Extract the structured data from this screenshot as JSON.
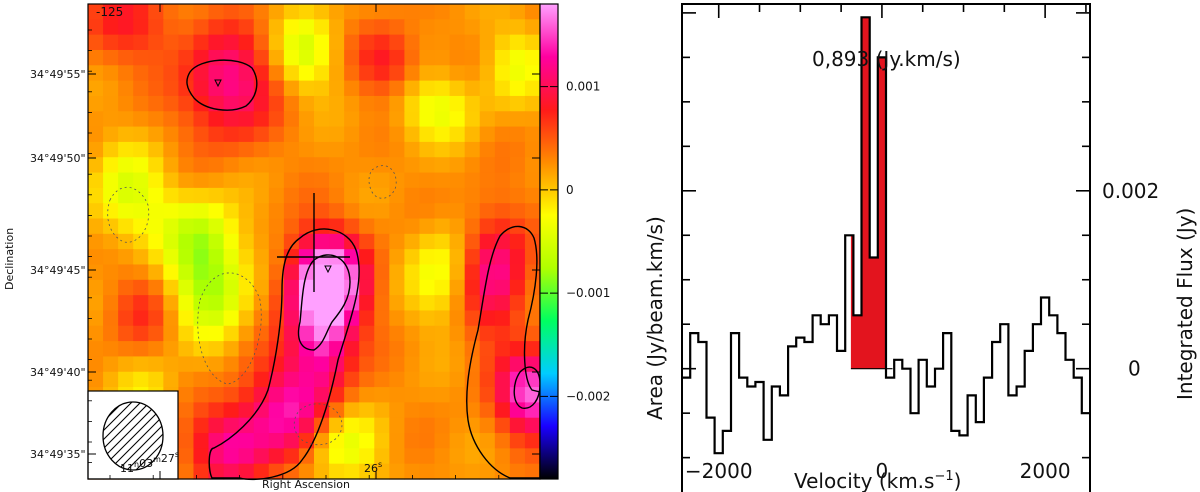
{
  "map": {
    "title": "-125",
    "xlabel": "Right Ascension",
    "ylabel": "Declination",
    "dec_ticks": [
      "34°49'55\"",
      "34°49'50\"",
      "34°49'45\"",
      "34°49'40\"",
      "34°49'35\""
    ],
    "ra_ticks": [
      {
        "h": "11",
        "m": "03",
        "s": "27",
        "sup_h": "h",
        "sup_m": "m",
        "sup_s": "s"
      },
      {
        "s": "26",
        "sup_s": "s"
      }
    ],
    "colorbar": {
      "labels": [
        "0.001",
        "0",
        "−0.001",
        "−0.002"
      ],
      "values": [
        0.001,
        0,
        -0.001,
        -0.002
      ],
      "vmin": -0.0028,
      "vmax": 0.0018,
      "colors": [
        "#000000",
        "#1a00ff",
        "#00ccff",
        "#00ff60",
        "#b0ff00",
        "#ffff00",
        "#ff8c00",
        "#ff1a1a",
        "#ff00a0",
        "#ffa0ff"
      ]
    }
  },
  "chart_data": {
    "type": "line",
    "title": "0,893 (Jy.km/s)",
    "xlabel": "Velocity (km.s",
    "xlabel_sup": "−1",
    "ylabel_left": "Area (Jy/beam.km/s)",
    "ylabel_right": "Integrated Flux (Jy)",
    "x_ticks": [
      -2000,
      0,
      2000
    ],
    "x_tick_labels": [
      "−2000",
      "0",
      "2000"
    ],
    "y_ticks": [
      0,
      0.002
    ],
    "y_tick_labels": [
      "0",
      "0.002"
    ],
    "xlim": [
      -2450,
      2550
    ],
    "ylim": [
      -0.0016,
      0.0041
    ],
    "highlight_range": [
      -380,
      130
    ],
    "series": [
      {
        "x": [
          -2400,
          -2300,
          -2200,
          -2100,
          -2000,
          -1900,
          -1800,
          -1700,
          -1600,
          -1500,
          -1400,
          -1300,
          -1200,
          -1100,
          -1000,
          -900,
          -800,
          -700,
          -600,
          -500,
          -400,
          -300,
          -200,
          -100,
          0,
          100,
          200,
          300,
          400,
          500,
          600,
          700,
          800,
          900,
          1000,
          1100,
          1200,
          1300,
          1400,
          1500,
          1600,
          1700,
          1800,
          1900,
          2000,
          2100,
          2200,
          2300,
          2400,
          2500
        ],
        "values": [
          -0.0001,
          0.0004,
          0.0003,
          -0.00055,
          -0.00095,
          -0.0007,
          0.0004,
          -0.0001,
          -0.0002,
          -0.00015,
          -0.0008,
          -0.0002,
          -0.0003,
          0.00025,
          0.00035,
          0.0003,
          0.0006,
          0.0005,
          0.0006,
          0.0002,
          0.0015,
          0.0006,
          0.00395,
          0.00125,
          0.0035,
          -0.0001,
          0.0001,
          0.0,
          -0.0005,
          0.0001,
          -0.0002,
          0.0,
          0.0004,
          -0.0007,
          -0.00075,
          -0.0003,
          -0.0006,
          -0.0001,
          0.0003,
          0.0005,
          -0.0003,
          -0.0002,
          0.0002,
          0.0005,
          0.0008,
          0.0006,
          0.0004,
          0.0001,
          -0.0001,
          -0.0005
        ]
      }
    ]
  }
}
